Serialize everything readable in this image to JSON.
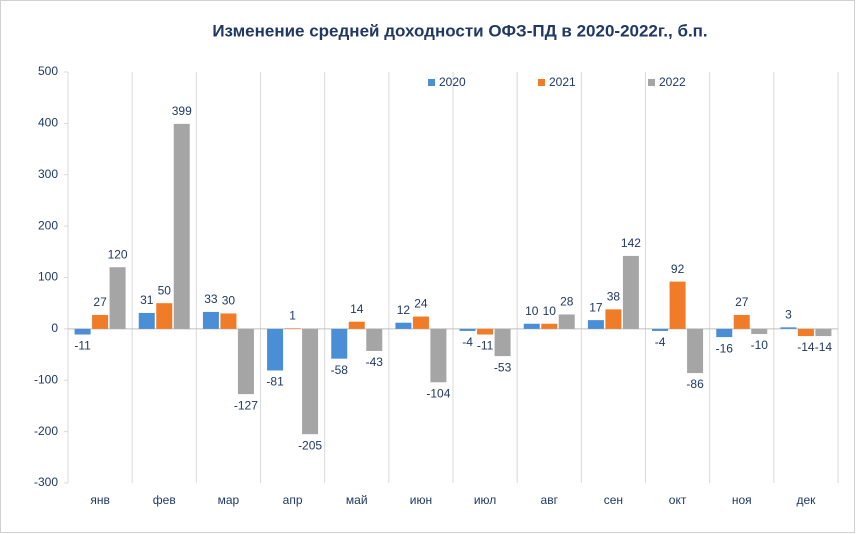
{
  "chart_data": {
    "type": "bar",
    "title": "Изменение средней доходности ОФЗ-ПД в 2020-2022г., б.п.",
    "categories": [
      "янв",
      "фев",
      "мар",
      "апр",
      "май",
      "июн",
      "июл",
      "авг",
      "сен",
      "окт",
      "ноя",
      "дек"
    ],
    "series": [
      {
        "name": "2020",
        "color": "#4a8fd6",
        "values": [
          -11,
          31,
          33,
          -81,
          -58,
          12,
          -4,
          10,
          17,
          -4,
          -16,
          3
        ]
      },
      {
        "name": "2021",
        "color": "#f07c28",
        "values": [
          27,
          50,
          30,
          1,
          14,
          24,
          -11,
          10,
          38,
          92,
          27,
          -14
        ]
      },
      {
        "name": "2022",
        "color": "#a5a5a5",
        "values": [
          120,
          399,
          -127,
          -205,
          -43,
          -104,
          -53,
          28,
          142,
          -86,
          -10,
          -14
        ]
      }
    ],
    "ylim": [
      -300,
      500
    ],
    "yticks": [
      -300,
      -200,
      -100,
      0,
      100,
      200,
      300,
      400,
      500
    ],
    "legend": "top"
  }
}
